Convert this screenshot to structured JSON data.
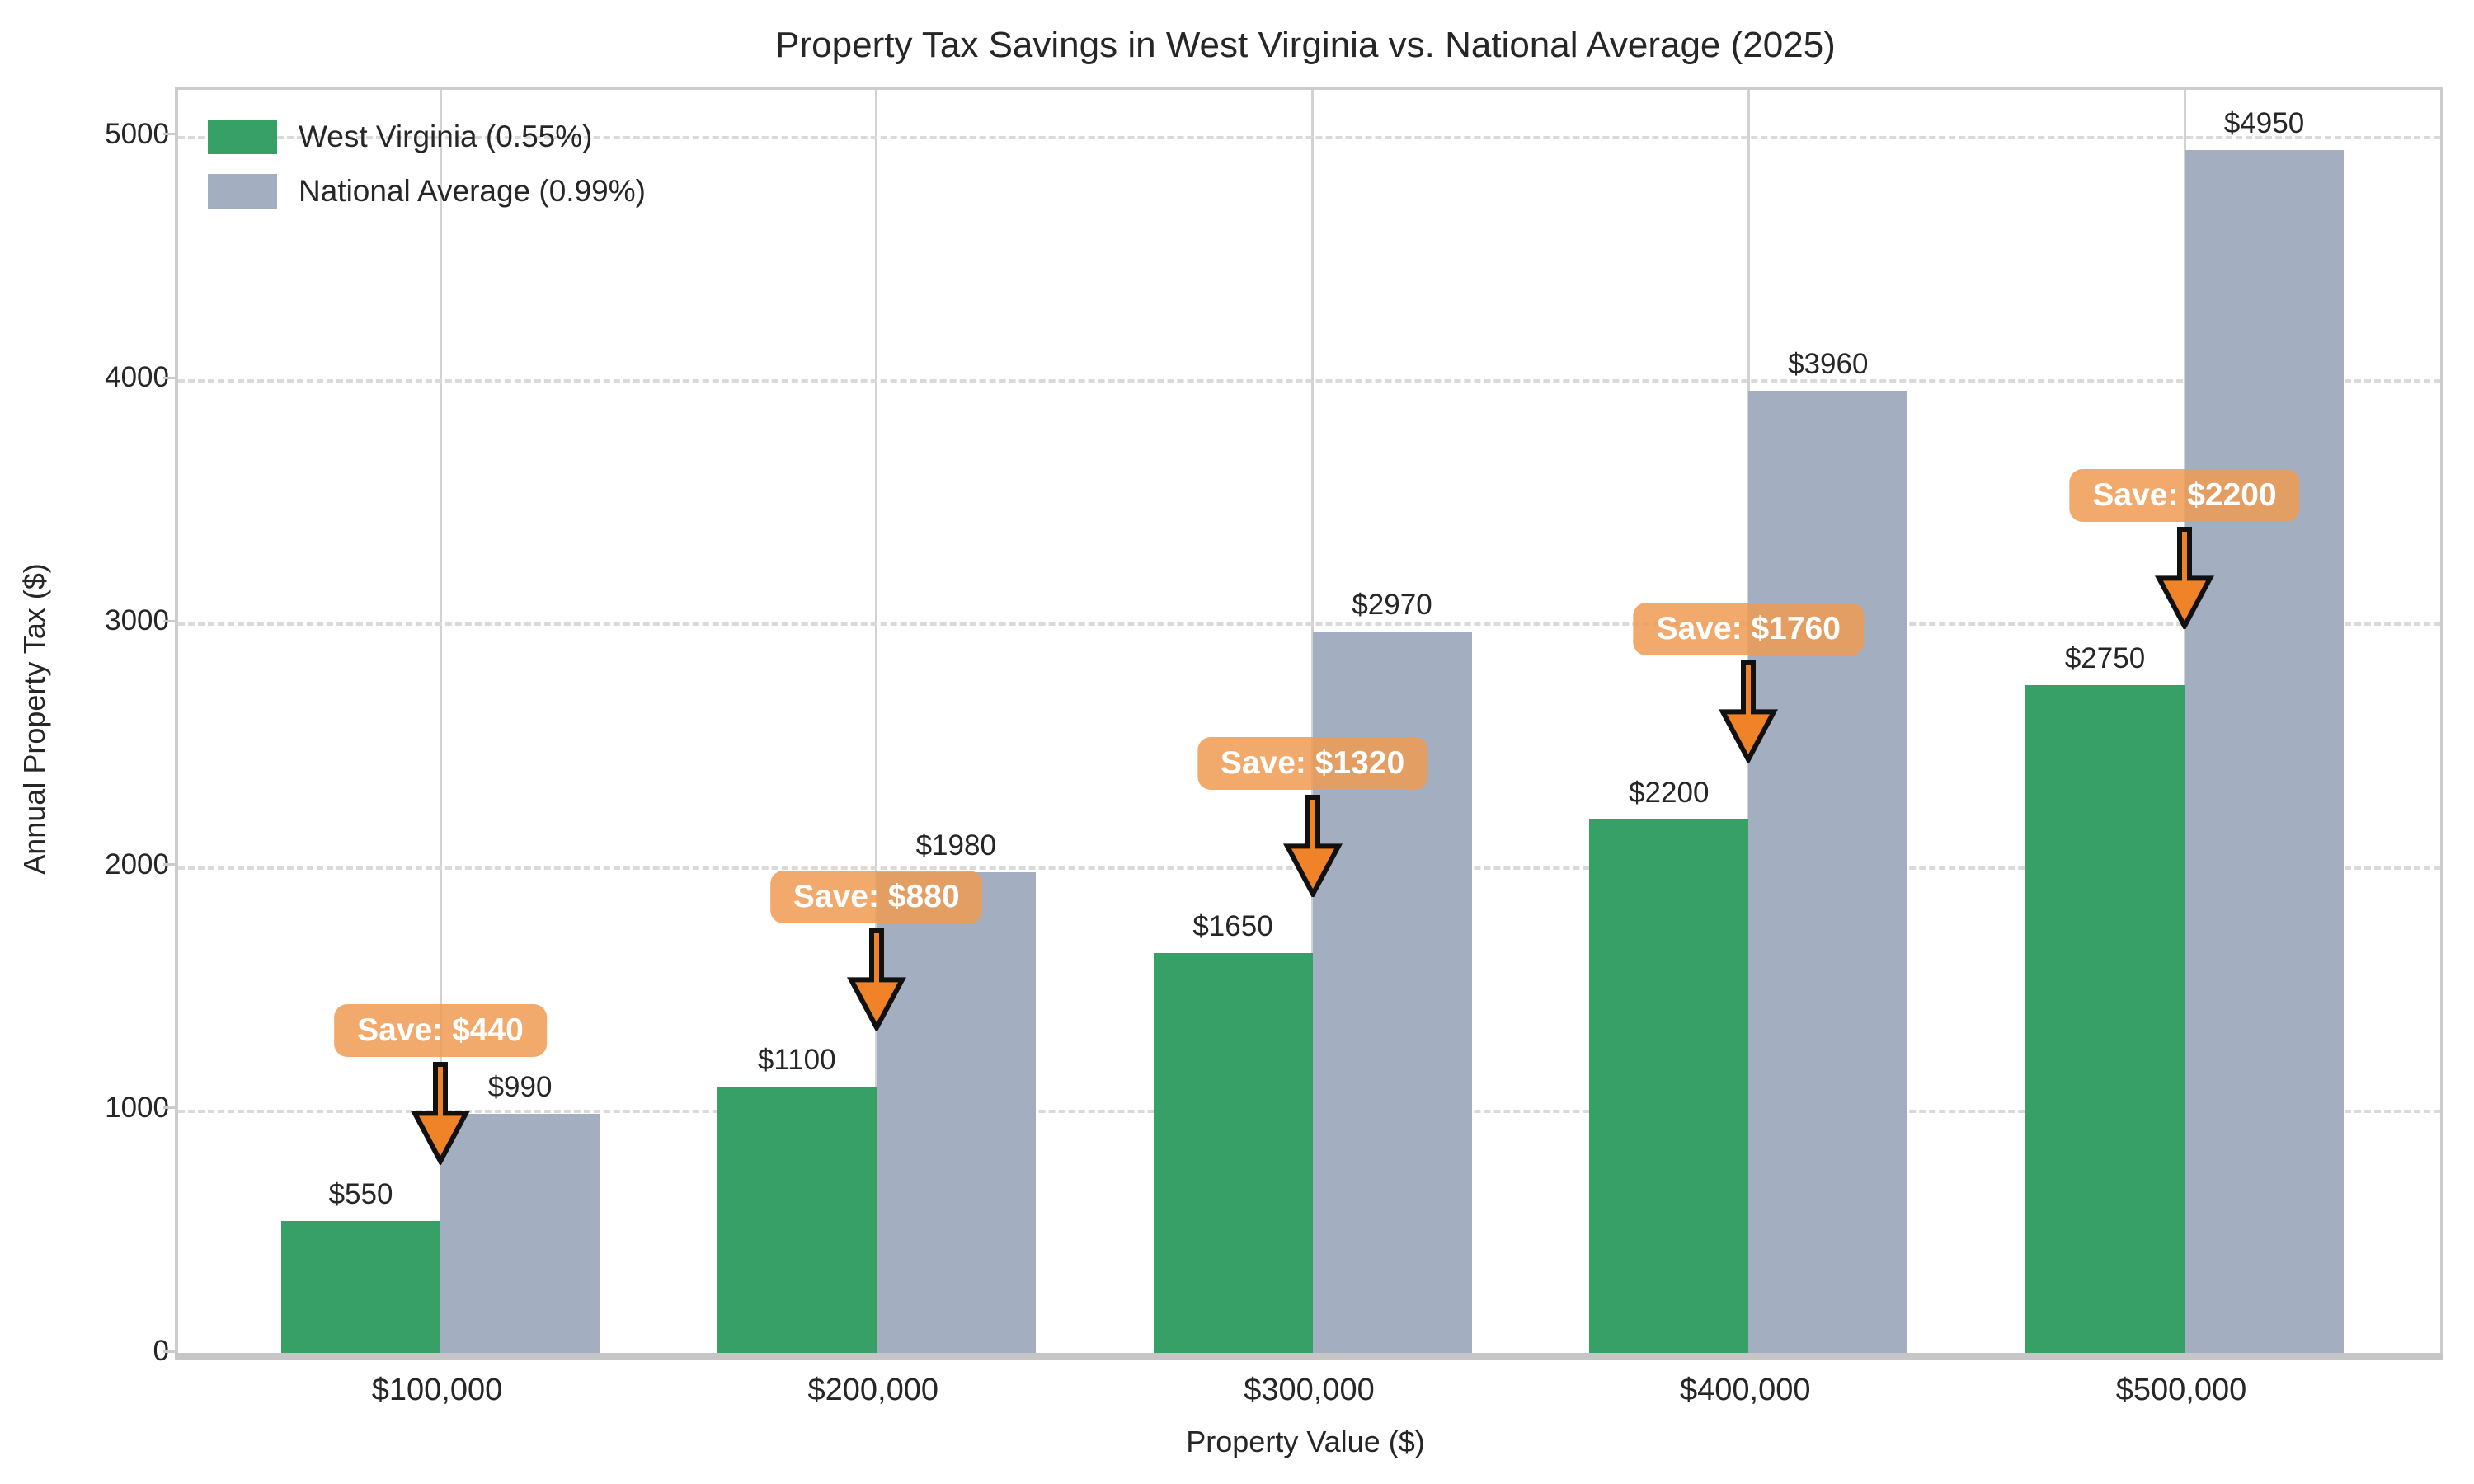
{
  "title": "Property Tax Savings in West Virginia vs. National Average (2025)",
  "chart_data": {
    "type": "bar",
    "title": "Property Tax Savings in West Virginia vs. National Average (2025)",
    "xlabel": "Property Value ($)",
    "ylabel": "Annual Property Tax ($)",
    "categories": [
      "$100,000",
      "$200,000",
      "$300,000",
      "$400,000",
      "$500,000"
    ],
    "series": [
      {
        "name": "West Virginia (0.55%)",
        "color": "#36A066",
        "values": [
          550,
          1100,
          1650,
          2200,
          2750
        ],
        "labels": [
          "$550",
          "$1100",
          "$1650",
          "$2200",
          "$2750"
        ]
      },
      {
        "name": "National Average (0.99%)",
        "color": "#A3AFC1",
        "values": [
          990,
          1980,
          2970,
          3960,
          4950
        ],
        "labels": [
          "$990",
          "$1980",
          "$2970",
          "$3960",
          "$4950"
        ]
      }
    ],
    "annotations": [
      {
        "label": "Save: $440",
        "savings": 440
      },
      {
        "label": "Save: $880",
        "savings": 880
      },
      {
        "label": "Save: $1320",
        "savings": 1320
      },
      {
        "label": "Save: $1760",
        "savings": 1760
      },
      {
        "label": "Save: $2200",
        "savings": 2200
      }
    ],
    "y_ticks": [
      0,
      1000,
      2000,
      3000,
      4000,
      5000
    ],
    "y_tick_labels": [
      "0",
      "1000",
      "2000",
      "3000",
      "4000",
      "5000"
    ],
    "ylim": [
      0,
      5196
    ],
    "legend_position": "upper left",
    "grid": true,
    "colors": {
      "wv_green": "#36A066",
      "national_gray": "#A3AFC1",
      "badge_orange": "rgba(238,155,82,0.85)",
      "arrow_orange": "#F08228",
      "arrow_outline": "#111111",
      "gridline": "#dadada",
      "spine": "#cccccc",
      "text": "#262626"
    }
  }
}
